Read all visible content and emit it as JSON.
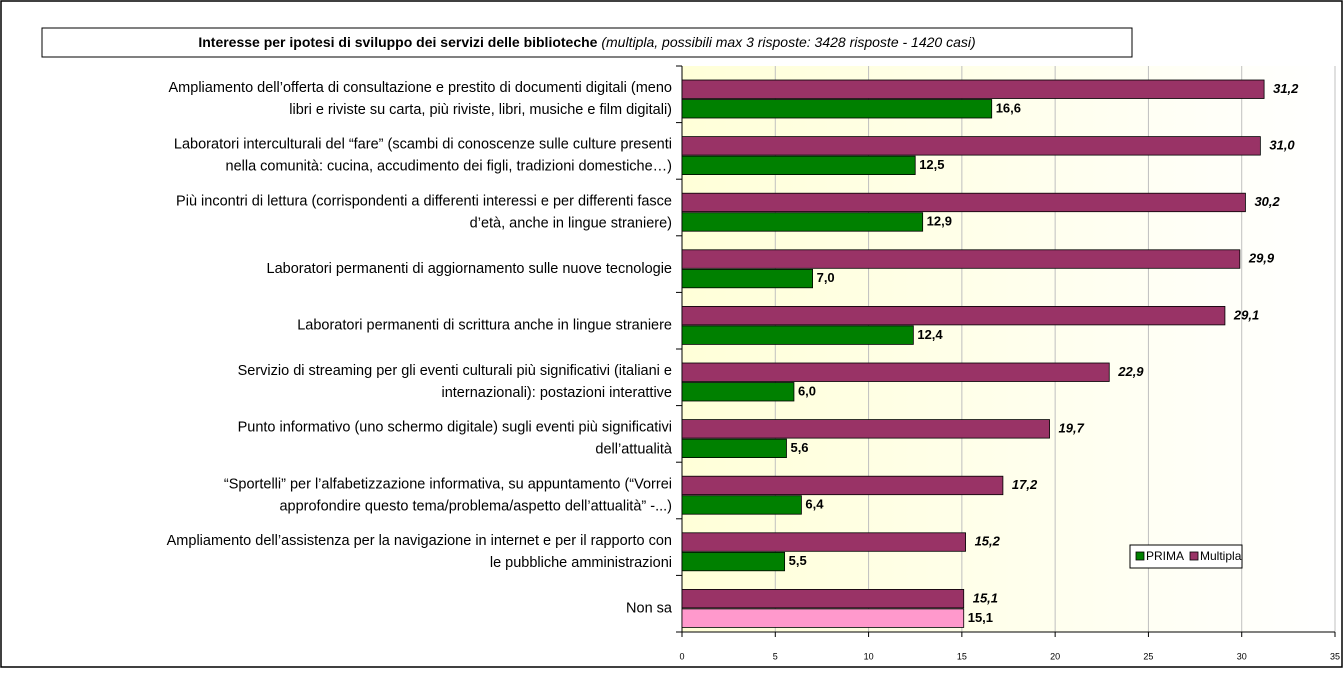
{
  "chart_data": {
    "type": "hbar",
    "title": "Interesse per ipotesi di sviluppo dei servizi delle biblioteche",
    "subtitle": "(multipla, possibili max 3 risposte: 3428 risposte - 1420 casi)",
    "categories": [
      [
        "Ampliamento dell’offerta di consultazione e prestito di documenti digitali (meno",
        "libri e riviste su carta, più riviste, libri, musiche e film digitali)"
      ],
      [
        "Laboratori interculturali del “fare” (scambi di conoscenze sulle culture presenti",
        "nella comunità: cucina, accudimento dei figli, tradizioni domestiche…)"
      ],
      [
        "Più incontri di lettura (corrispondenti a differenti interessi e per differenti fasce",
        "d’età, anche in lingue straniere)"
      ],
      [
        "Laboratori permanenti di aggiornamento sulle nuove tecnologie"
      ],
      [
        "Laboratori permanenti di scrittura anche in lingue straniere"
      ],
      [
        "Servizio di streaming per gli eventi culturali più significativi (italiani e",
        "internazionali): postazioni interattive"
      ],
      [
        "Punto informativo (uno schermo digitale) sugli eventi più significativi",
        "dell’attualità"
      ],
      [
        "“Sportelli” per l’alfabetizzazione informativa, su appuntamento (“Vorrei",
        "approfondire questo tema/problema/aspetto dell’attualità” -...)"
      ],
      [
        "Ampliamento dell’assistenza per la navigazione in internet e per il rapporto con",
        "le pubbliche amministrazioni"
      ],
      [
        "Non sa"
      ]
    ],
    "series": [
      {
        "name": "Multipla",
        "color": "#993366",
        "values": [
          31.2,
          31.0,
          30.2,
          29.9,
          29.1,
          22.9,
          19.7,
          17.2,
          15.2,
          15.1
        ],
        "value_labels": [
          "31,2",
          "31,0",
          "30,2",
          "29,9",
          "29,1",
          "22,9",
          "19,7",
          "17,2",
          "15,2",
          "15,1"
        ]
      },
      {
        "name": "PRIMA",
        "color": "#008000",
        "colors": [
          "#008000",
          "#008000",
          "#008000",
          "#008000",
          "#008000",
          "#008000",
          "#008000",
          "#008000",
          "#008000",
          "#ff99cc"
        ],
        "values": [
          16.6,
          12.5,
          12.9,
          7.0,
          12.4,
          6.0,
          5.6,
          6.4,
          5.5,
          15.1
        ],
        "value_labels": [
          "16,6",
          "12,5",
          "12,9",
          "7,0",
          "12,4",
          "6,0",
          "5,6",
          "6,4",
          "5,5",
          "15,1"
        ]
      }
    ],
    "legend_order": [
      1,
      0
    ],
    "xlim": [
      0,
      35
    ],
    "xticks": [
      0,
      5,
      10,
      15,
      20,
      25,
      30,
      35
    ],
    "grid": true
  }
}
